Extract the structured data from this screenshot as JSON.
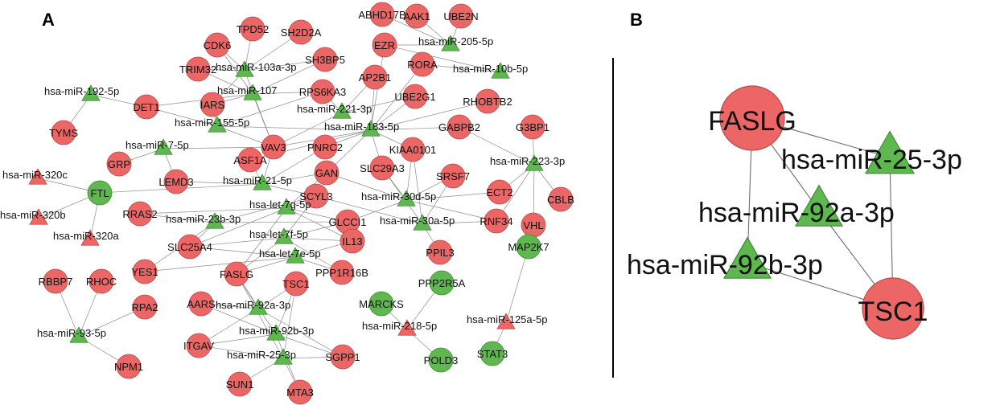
{
  "panels": {
    "a": "A",
    "b": "B"
  },
  "colors": {
    "mrna": "#ec6666",
    "mrna_stroke": "#b84a4a",
    "mirna": "#5fb84f",
    "mirna_stroke": "#3f8a35",
    "edge": "#8c8c8c"
  },
  "network_a": {
    "nodes": [
      {
        "id": "ABHD17B",
        "label": "ABHD17B",
        "shape": "circle",
        "color": "red"
      },
      {
        "id": "AAK1",
        "label": "AAK1",
        "shape": "circle",
        "color": "red"
      },
      {
        "id": "UBE2N",
        "label": "UBE2N",
        "shape": "circle",
        "color": "red"
      },
      {
        "id": "TPD52",
        "label": "TPD52",
        "shape": "circle",
        "color": "red"
      },
      {
        "id": "SH2D2A",
        "label": "SH2D2A",
        "shape": "circle",
        "color": "red"
      },
      {
        "id": "CDK6",
        "label": "CDK6",
        "shape": "circle",
        "color": "red"
      },
      {
        "id": "EZR",
        "label": "EZR",
        "shape": "circle",
        "color": "red"
      },
      {
        "id": "miR205",
        "label": "hsa-miR-205-5p",
        "shape": "triangle",
        "color": "green"
      },
      {
        "id": "SH3BP5",
        "label": "SH3BP5",
        "shape": "circle",
        "color": "red"
      },
      {
        "id": "miR103a",
        "label": "hsa-miR-103a-3p",
        "shape": "triangle",
        "color": "green"
      },
      {
        "id": "TRIM32",
        "label": "TRIM32",
        "shape": "circle",
        "color": "red"
      },
      {
        "id": "RORA",
        "label": "RORA",
        "shape": "circle",
        "color": "red"
      },
      {
        "id": "miR10b",
        "label": "hsa-miR-10b-5p",
        "shape": "triangle",
        "color": "green"
      },
      {
        "id": "AP2B1",
        "label": "AP2B1",
        "shape": "circle",
        "color": "red"
      },
      {
        "id": "miR107",
        "label": "hsa-miR-107",
        "shape": "triangle",
        "color": "green"
      },
      {
        "id": "miR192",
        "label": "hsa-miR-192-5p",
        "shape": "triangle",
        "color": "green"
      },
      {
        "id": "RPS6KA3",
        "label": "RPS6KA3",
        "shape": "circle",
        "color": "red"
      },
      {
        "id": "DET1",
        "label": "DET1",
        "shape": "circle",
        "color": "red"
      },
      {
        "id": "IARS",
        "label": "IARS",
        "shape": "circle",
        "color": "red"
      },
      {
        "id": "UBE2G1",
        "label": "UBE2G1",
        "shape": "circle",
        "color": "red"
      },
      {
        "id": "RHOBTB2",
        "label": "RHOBTB2",
        "shape": "circle",
        "color": "red"
      },
      {
        "id": "miR221",
        "label": "hsa-miR-221-3p",
        "shape": "triangle",
        "color": "green"
      },
      {
        "id": "miR155",
        "label": "hsa-miR-155-5p",
        "shape": "triangle",
        "color": "green"
      },
      {
        "id": "TYMS",
        "label": "TYMS",
        "shape": "circle",
        "color": "red"
      },
      {
        "id": "miR183",
        "label": "hsa-miR-183-5p",
        "shape": "triangle",
        "color": "green"
      },
      {
        "id": "GABPB2",
        "label": "GABPB2",
        "shape": "circle",
        "color": "red"
      },
      {
        "id": "G3BP1",
        "label": "G3BP1",
        "shape": "circle",
        "color": "red"
      },
      {
        "id": "VAV3",
        "label": "VAV3",
        "shape": "circle",
        "color": "red"
      },
      {
        "id": "PNRC2",
        "label": "PNRC2",
        "shape": "circle",
        "color": "red"
      },
      {
        "id": "KIAA0101",
        "label": "KIAA0101",
        "shape": "circle",
        "color": "red"
      },
      {
        "id": "miR7",
        "label": "hsa-miR-7-5p",
        "shape": "triangle",
        "color": "green"
      },
      {
        "id": "ASF1A",
        "label": "ASF1A",
        "shape": "circle",
        "color": "red"
      },
      {
        "id": "GRP",
        "label": "GRP",
        "shape": "circle",
        "color": "red"
      },
      {
        "id": "miR223",
        "label": "hsa-miR-223-3p",
        "shape": "triangle",
        "color": "green"
      },
      {
        "id": "SLC29A3",
        "label": "SLC29A3",
        "shape": "circle",
        "color": "red"
      },
      {
        "id": "SRSF7",
        "label": "SRSF7",
        "shape": "circle",
        "color": "red"
      },
      {
        "id": "miR320c",
        "label": "hsa-miR-320c",
        "shape": "triangle",
        "color": "red"
      },
      {
        "id": "FTL",
        "label": "FTL",
        "shape": "circle",
        "color": "green"
      },
      {
        "id": "LEMD3",
        "label": "LEMD3",
        "shape": "circle",
        "color": "red"
      },
      {
        "id": "miR21",
        "label": "hsa-miR-21-5p",
        "shape": "triangle",
        "color": "green"
      },
      {
        "id": "GAN",
        "label": "GAN",
        "shape": "circle",
        "color": "red"
      },
      {
        "id": "ECT2",
        "label": "ECT2",
        "shape": "circle",
        "color": "red"
      },
      {
        "id": "CBLB",
        "label": "CBLB",
        "shape": "circle",
        "color": "red"
      },
      {
        "id": "SCYL3",
        "label": "SCYL3",
        "shape": "circle",
        "color": "red"
      },
      {
        "id": "miR30d",
        "label": "hsa-miR-30d-5p",
        "shape": "triangle",
        "color": "green"
      },
      {
        "id": "RRAS2",
        "label": "RRAS2",
        "shape": "circle",
        "color": "red"
      },
      {
        "id": "let7g",
        "label": "hsa-let-7g-5p",
        "shape": "triangle",
        "color": "green"
      },
      {
        "id": "miR320b",
        "label": "hsa-miR-320b",
        "shape": "triangle",
        "color": "red"
      },
      {
        "id": "miR23b",
        "label": "hsa-miR-23b-3p",
        "shape": "triangle",
        "color": "green"
      },
      {
        "id": "GLCCI1",
        "label": "GLCCI1",
        "shape": "circle",
        "color": "red"
      },
      {
        "id": "miR30a",
        "label": "hsa-miR-30a-5p",
        "shape": "triangle",
        "color": "green"
      },
      {
        "id": "RNF34",
        "label": "RNF34",
        "shape": "circle",
        "color": "red"
      },
      {
        "id": "VHL",
        "label": "VHL",
        "shape": "circle",
        "color": "red"
      },
      {
        "id": "miR320a",
        "label": "hsa-miR-320a",
        "shape": "triangle",
        "color": "red"
      },
      {
        "id": "let7f",
        "label": "hsa-let-7f-5p",
        "shape": "triangle",
        "color": "green"
      },
      {
        "id": "SLC25A4",
        "label": "SLC25A4",
        "shape": "circle",
        "color": "red"
      },
      {
        "id": "IL13",
        "label": "IL13",
        "shape": "circle",
        "color": "red"
      },
      {
        "id": "PPIL3",
        "label": "PPIL3",
        "shape": "circle",
        "color": "red"
      },
      {
        "id": "MAP2K7",
        "label": "MAP2K7",
        "shape": "circle",
        "color": "green"
      },
      {
        "id": "let7e",
        "label": "hsa-let-7e-5p",
        "shape": "triangle",
        "color": "green"
      },
      {
        "id": "YES1",
        "label": "YES1",
        "shape": "circle",
        "color": "red"
      },
      {
        "id": "FASLG_a",
        "label": "FASLG",
        "shape": "circle",
        "color": "red"
      },
      {
        "id": "PPP1R16B",
        "label": "PPP1R16B",
        "shape": "circle",
        "color": "red"
      },
      {
        "id": "PPP2R5A",
        "label": "PPP2R5A",
        "shape": "circle",
        "color": "green"
      },
      {
        "id": "RBBP7",
        "label": "RBBP7",
        "shape": "circle",
        "color": "red"
      },
      {
        "id": "RHOC",
        "label": "RHOC",
        "shape": "circle",
        "color": "red"
      },
      {
        "id": "TSC1_a",
        "label": "TSC1",
        "shape": "circle",
        "color": "red"
      },
      {
        "id": "MARCKS",
        "label": "MARCKS",
        "shape": "circle",
        "color": "green"
      },
      {
        "id": "AARS",
        "label": "AARS",
        "shape": "circle",
        "color": "red"
      },
      {
        "id": "RPA2",
        "label": "RPA2",
        "shape": "circle",
        "color": "red"
      },
      {
        "id": "miR92a_a",
        "label": "hsa-miR-92a-3p",
        "shape": "triangle",
        "color": "green"
      },
      {
        "id": "miR125a",
        "label": "hsa-miR-125a-5p",
        "shape": "triangle",
        "color": "red"
      },
      {
        "id": "miR218",
        "label": "hsa-miR-218-5p",
        "shape": "triangle",
        "color": "red"
      },
      {
        "id": "miR93",
        "label": "hsa-miR-93-5p",
        "shape": "triangle",
        "color": "green"
      },
      {
        "id": "miR92b_a",
        "label": "hsa-miR-92b-3p",
        "shape": "triangle",
        "color": "green"
      },
      {
        "id": "ITGAV",
        "label": "ITGAV",
        "shape": "circle",
        "color": "red"
      },
      {
        "id": "SGPP1",
        "label": "SGPP1",
        "shape": "circle",
        "color": "red"
      },
      {
        "id": "miR25_a",
        "label": "hsa-miR-25-3p",
        "shape": "triangle",
        "color": "green"
      },
      {
        "id": "POLD3",
        "label": "POLD3",
        "shape": "circle",
        "color": "green"
      },
      {
        "id": "STAT3",
        "label": "STAT3",
        "shape": "circle",
        "color": "green"
      },
      {
        "id": "NPM1",
        "label": "NPM1",
        "shape": "circle",
        "color": "red"
      },
      {
        "id": "SUN1",
        "label": "SUN1",
        "shape": "circle",
        "color": "red"
      },
      {
        "id": "MTA3",
        "label": "MTA3",
        "shape": "circle",
        "color": "red"
      }
    ],
    "edges": [
      [
        "miR205",
        "EZR"
      ],
      [
        "miR205",
        "AAK1"
      ],
      [
        "miR205",
        "UBE2N"
      ],
      [
        "miR205",
        "ABHD17B"
      ],
      [
        "miR103a",
        "TPD52"
      ],
      [
        "miR103a",
        "SH2D2A"
      ],
      [
        "miR103a",
        "CDK6"
      ],
      [
        "miR103a",
        "SH3BP5"
      ],
      [
        "miR103a",
        "TRIM32"
      ],
      [
        "miR103a",
        "IARS"
      ],
      [
        "miR103a",
        "VAV3"
      ],
      [
        "miR107",
        "CDK6"
      ],
      [
        "miR107",
        "TRIM32"
      ],
      [
        "miR107",
        "SH3BP5"
      ],
      [
        "miR107",
        "RPS6KA3"
      ],
      [
        "miR107",
        "IARS"
      ],
      [
        "miR107",
        "VAV3"
      ],
      [
        "miR107",
        "DET1"
      ],
      [
        "miR192",
        "DET1"
      ],
      [
        "miR192",
        "TYMS"
      ],
      [
        "miR221",
        "RPS6KA3"
      ],
      [
        "miR221",
        "AP2B1"
      ],
      [
        "miR221",
        "UBE2G1"
      ],
      [
        "miR221",
        "VAV3"
      ],
      [
        "miR155",
        "IARS"
      ],
      [
        "miR155",
        "DET1"
      ],
      [
        "miR155",
        "RPS6KA3"
      ],
      [
        "miR155",
        "VAV3"
      ],
      [
        "miR155",
        "miR183"
      ],
      [
        "miR10b",
        "RORA"
      ],
      [
        "miR10b",
        "EZR"
      ],
      [
        "miR183",
        "EZR"
      ],
      [
        "miR183",
        "AP2B1"
      ],
      [
        "miR183",
        "UBE2G1"
      ],
      [
        "miR183",
        "GABPB2"
      ],
      [
        "miR183",
        "PNRC2"
      ],
      [
        "miR183",
        "KIAA0101"
      ],
      [
        "miR183",
        "VAV3"
      ],
      [
        "miR183",
        "RHOBTB2"
      ],
      [
        "miR183",
        "ASF1A"
      ],
      [
        "miR183",
        "SLC29A3"
      ],
      [
        "miR183",
        "GAN"
      ],
      [
        "miR183",
        "RORA"
      ],
      [
        "miR7",
        "GRP"
      ],
      [
        "miR7",
        "VAV3"
      ],
      [
        "miR7",
        "LEMD3"
      ],
      [
        "miR223",
        "G3BP1"
      ],
      [
        "miR223",
        "ECT2"
      ],
      [
        "miR223",
        "CBLB"
      ],
      [
        "miR223",
        "VHL"
      ],
      [
        "miR223",
        "RNF34"
      ],
      [
        "miR223",
        "GABPB2"
      ],
      [
        "miR21",
        "ASF1A"
      ],
      [
        "miR21",
        "LEMD3"
      ],
      [
        "miR21",
        "GAN"
      ],
      [
        "miR21",
        "PNRC2"
      ],
      [
        "miR21",
        "SCYL3"
      ],
      [
        "miR21",
        "VAV3"
      ],
      [
        "miR21",
        "FTL"
      ],
      [
        "miR320c",
        "FTL"
      ],
      [
        "miR320b",
        "FTL"
      ],
      [
        "miR320a",
        "FTL"
      ],
      [
        "miR30d",
        "SLC29A3"
      ],
      [
        "miR30d",
        "SRSF7"
      ],
      [
        "miR30d",
        "KIAA0101"
      ],
      [
        "miR30d",
        "RNF34"
      ],
      [
        "miR30d",
        "ECT2"
      ],
      [
        "miR30d",
        "GLCCI1"
      ],
      [
        "miR30d",
        "GAN"
      ],
      [
        "miR30a",
        "RNF34"
      ],
      [
        "miR30a",
        "PPIL3"
      ],
      [
        "miR30a",
        "SCYL3"
      ],
      [
        "miR30a",
        "SRSF7"
      ],
      [
        "miR30a",
        "SLC29A3"
      ],
      [
        "miR30a",
        "KIAA0101"
      ],
      [
        "let7g",
        "SCYL3"
      ],
      [
        "let7g",
        "GAN"
      ],
      [
        "let7g",
        "GLCCI1"
      ],
      [
        "let7g",
        "RRAS2"
      ],
      [
        "let7g",
        "SLC25A4"
      ],
      [
        "let7g",
        "IL13"
      ],
      [
        "let7g",
        "FASLG_a"
      ],
      [
        "let7f",
        "SLC25A4"
      ],
      [
        "let7f",
        "IL13"
      ],
      [
        "let7f",
        "GLCCI1"
      ],
      [
        "let7f",
        "FASLG_a"
      ],
      [
        "let7f",
        "PPP1R16B"
      ],
      [
        "let7f",
        "SCYL3"
      ],
      [
        "let7e",
        "FASLG_a"
      ],
      [
        "let7e",
        "PPP1R16B"
      ],
      [
        "let7e",
        "IL13"
      ],
      [
        "let7e",
        "SLC25A4"
      ],
      [
        "let7e",
        "YES1"
      ],
      [
        "miR23b",
        "RRAS2"
      ],
      [
        "miR23b",
        "SLC25A4"
      ],
      [
        "miR23b",
        "SCYL3"
      ],
      [
        "miR23b",
        "GLCCI1"
      ],
      [
        "miR23b",
        "YES1"
      ],
      [
        "miR92a_a",
        "FASLG_a"
      ],
      [
        "miR92a_a",
        "TSC1_a"
      ],
      [
        "miR92a_a",
        "AARS"
      ],
      [
        "miR92a_a",
        "ITGAV"
      ],
      [
        "miR92a_a",
        "SGPP1"
      ],
      [
        "miR92b_a",
        "FASLG_a"
      ],
      [
        "miR92b_a",
        "TSC1_a"
      ],
      [
        "miR92b_a",
        "AARS"
      ],
      [
        "miR92b_a",
        "ITGAV"
      ],
      [
        "miR92b_a",
        "SGPP1"
      ],
      [
        "miR92b_a",
        "MTA3"
      ],
      [
        "miR25_a",
        "FASLG_a"
      ],
      [
        "miR25_a",
        "TSC1_a"
      ],
      [
        "miR25_a",
        "ITGAV"
      ],
      [
        "miR25_a",
        "SUN1"
      ],
      [
        "miR25_a",
        "MTA3"
      ],
      [
        "miR25_a",
        "SGPP1"
      ],
      [
        "miR93",
        "RBBP7"
      ],
      [
        "miR93",
        "RPA2"
      ],
      [
        "miR93",
        "NPM1"
      ],
      [
        "miR93",
        "RHOC"
      ],
      [
        "miR218",
        "MARCKS"
      ],
      [
        "miR218",
        "PPP2R5A"
      ],
      [
        "miR218",
        "POLD3"
      ],
      [
        "miR125a",
        "MAP2K7"
      ],
      [
        "miR125a",
        "STAT3"
      ]
    ]
  },
  "network_b": {
    "nodes": [
      {
        "id": "FASLG_b",
        "label": "FASLG",
        "shape": "circle",
        "color": "red"
      },
      {
        "id": "miR25_b",
        "label": "hsa-miR-25-3p",
        "shape": "triangle",
        "color": "green"
      },
      {
        "id": "miR92a_b",
        "label": "hsa-miR-92a-3p",
        "shape": "triangle",
        "color": "green"
      },
      {
        "id": "miR92b_b",
        "label": "hsa-miR-92b-3p",
        "shape": "triangle",
        "color": "green"
      },
      {
        "id": "TSC1_b",
        "label": "TSC1",
        "shape": "circle",
        "color": "red"
      }
    ],
    "edges": [
      [
        "FASLG_b",
        "miR25_b"
      ],
      [
        "FASLG_b",
        "miR92a_b"
      ],
      [
        "FASLG_b",
        "miR92b_b"
      ],
      [
        "TSC1_b",
        "miR25_b"
      ],
      [
        "TSC1_b",
        "miR92a_b"
      ],
      [
        "TSC1_b",
        "miR92b_b"
      ]
    ]
  }
}
